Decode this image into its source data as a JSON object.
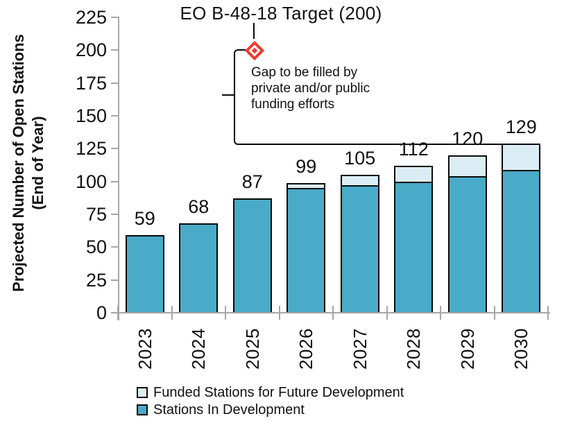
{
  "chart_data": {
    "type": "bar",
    "stacked": true,
    "categories": [
      "2023",
      "2024",
      "2025",
      "2026",
      "2027",
      "2028",
      "2029",
      "2030"
    ],
    "series": [
      {
        "name": "Funded Stations for Future Development",
        "color": "#DBEDF4",
        "values": [
          0,
          0,
          0,
          4,
          8,
          12,
          16,
          20
        ]
      },
      {
        "name": "Stations In Development",
        "color": "#49ABC7",
        "values": [
          59,
          68,
          87,
          95,
          97,
          100,
          104,
          109
        ]
      }
    ],
    "totals": [
      59,
      68,
      87,
      99,
      105,
      112,
      120,
      129
    ],
    "ylabel_lines": [
      "Projected Number of Open Stations",
      "(End of Year)"
    ],
    "ylim": [
      0,
      225
    ],
    "yticks": [
      0,
      25,
      50,
      75,
      100,
      125,
      150,
      175,
      200,
      225
    ],
    "grid": false,
    "legend_position": "bottom-left",
    "annotations": {
      "target": {
        "label": "EO B-48-18 Target (200)",
        "value": 200,
        "marker": "red-diamond"
      },
      "gap_note_lines": [
        "Gap to be filled by",
        "private and/or public",
        "funding efforts"
      ],
      "gap_line_value": 129
    }
  },
  "colors": {
    "funded_fill": "#DBEDF4",
    "development_fill": "#49ABC7",
    "bar_border": "#0A0A0A",
    "axis_gray": "#A6A6A6",
    "marker_red": "#EE3B2F",
    "text": "#111111"
  }
}
